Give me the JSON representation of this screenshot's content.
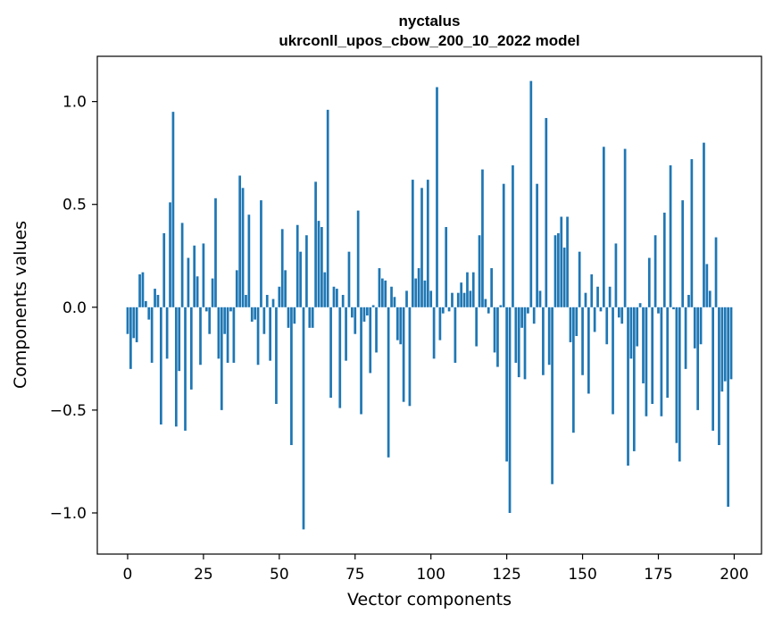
{
  "chart_data": {
    "type": "bar",
    "title": "nyctalus",
    "subtitle": "ukrconll_upos_cbow_200_10_2022 model",
    "xlabel": "Vector components",
    "ylabel": "Components values",
    "xlim": [
      -10,
      209
    ],
    "ylim": [
      -1.2,
      1.22
    ],
    "xticks": [
      0,
      25,
      50,
      75,
      100,
      125,
      150,
      175,
      200
    ],
    "xtick_labels": [
      "0",
      "25",
      "50",
      "75",
      "100",
      "125",
      "150",
      "175",
      "200"
    ],
    "yticks": [
      -1.0,
      -0.5,
      0.0,
      0.5,
      1.0
    ],
    "ytick_labels": [
      "−1.0",
      "−0.5",
      "0.0",
      "0.5",
      "1.0"
    ],
    "grid": false,
    "bar_color": "#1f77b4",
    "values": [
      -0.13,
      -0.3,
      -0.15,
      -0.17,
      0.16,
      0.17,
      0.03,
      -0.06,
      -0.27,
      0.09,
      0.06,
      -0.57,
      0.36,
      -0.25,
      0.51,
      0.95,
      -0.58,
      -0.31,
      0.41,
      -0.6,
      0.24,
      -0.4,
      0.3,
      0.15,
      -0.28,
      0.31,
      -0.02,
      -0.13,
      0.14,
      0.53,
      -0.25,
      -0.5,
      -0.13,
      -0.27,
      -0.02,
      -0.27,
      0.18,
      0.64,
      0.58,
      0.06,
      0.45,
      -0.07,
      -0.06,
      -0.28,
      0.52,
      -0.13,
      0.06,
      -0.26,
      0.04,
      -0.47,
      0.1,
      0.38,
      0.18,
      -0.1,
      -0.67,
      -0.08,
      0.4,
      0.27,
      -1.08,
      0.35,
      -0.1,
      -0.1,
      0.61,
      0.42,
      0.39,
      0.17,
      0.96,
      -0.44,
      0.1,
      0.09,
      -0.49,
      0.06,
      -0.26,
      0.27,
      -0.05,
      -0.13,
      0.47,
      -0.52,
      -0.07,
      -0.04,
      -0.32,
      0.01,
      -0.22,
      0.19,
      0.14,
      0.13,
      -0.73,
      0.1,
      0.05,
      -0.16,
      -0.18,
      -0.46,
      0.08,
      -0.48,
      0.62,
      0.14,
      0.19,
      0.58,
      0.13,
      0.62,
      0.08,
      -0.25,
      1.07,
      -0.16,
      -0.03,
      0.39,
      -0.02,
      0.07,
      -0.27,
      0.07,
      0.12,
      0.07,
      0.17,
      0.08,
      0.17,
      -0.19,
      0.35,
      0.67,
      0.04,
      -0.03,
      0.19,
      -0.22,
      -0.29,
      0.01,
      0.6,
      -0.75,
      -1.0,
      0.69,
      -0.27,
      -0.34,
      -0.1,
      -0.35,
      -0.03,
      1.1,
      -0.08,
      0.6,
      0.08,
      -0.33,
      0.92,
      -0.28,
      -0.86,
      0.35,
      0.36,
      0.44,
      0.29,
      0.44,
      -0.17,
      -0.61,
      -0.14,
      0.27,
      -0.33,
      0.07,
      -0.42,
      0.16,
      -0.12,
      0.1,
      -0.02,
      0.78,
      -0.18,
      0.1,
      -0.52,
      0.31,
      -0.05,
      -0.08,
      0.77,
      -0.77,
      -0.25,
      -0.7,
      -0.19,
      0.02,
      -0.37,
      -0.53,
      0.24,
      -0.47,
      0.35,
      -0.03,
      -0.53,
      0.46,
      -0.44,
      0.69,
      -0.01,
      -0.66,
      -0.75,
      0.52,
      -0.3,
      0.06,
      0.72,
      -0.2,
      -0.5,
      -0.18,
      0.8,
      0.21,
      0.08,
      -0.6,
      0.34,
      -0.67,
      -0.41,
      -0.36,
      -0.97,
      -0.35
    ]
  }
}
